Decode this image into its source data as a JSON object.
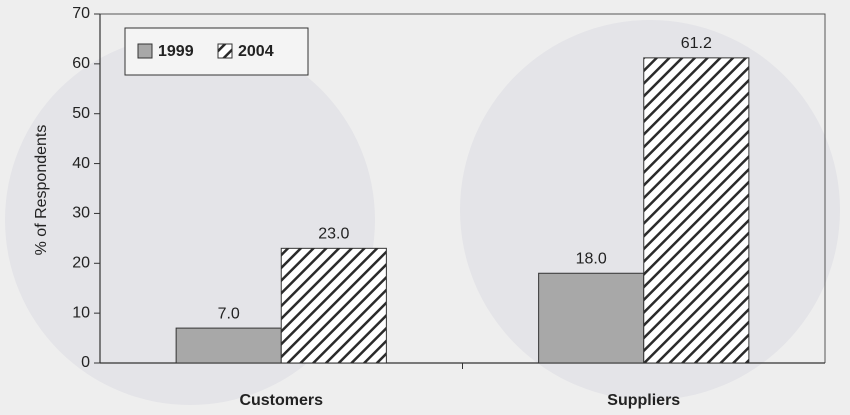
{
  "chart_data": {
    "type": "bar",
    "categories": [
      "Customers",
      "Suppliers"
    ],
    "series": [
      {
        "name": "1999",
        "color": "#a8a8a8",
        "values": [
          7.0,
          18.0
        ],
        "value_labels": [
          "7.0",
          "18.0"
        ]
      },
      {
        "name": "2004",
        "color": "#2a2a2a",
        "hatch": true,
        "values": [
          23.0,
          61.2
        ],
        "value_labels": [
          "23.0",
          "61.2"
        ]
      }
    ],
    "ylabel": "% of Respondents",
    "ylim": [
      0,
      70
    ],
    "yticks": [
      0,
      10,
      20,
      30,
      40,
      50,
      60,
      70
    ],
    "legend": "upper left"
  }
}
